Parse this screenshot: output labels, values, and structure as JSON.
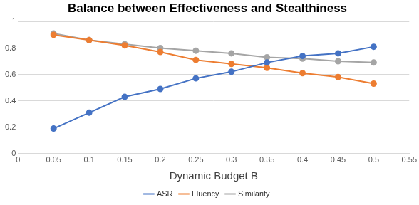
{
  "chart_data": {
    "type": "line",
    "title": "Balance between Effectiveness and Stealthiness",
    "x_label": "Dynamic Budget B",
    "x": [
      0.05,
      0.1,
      0.15,
      0.2,
      0.25,
      0.3,
      0.35,
      0.4,
      0.45,
      0.5
    ],
    "series": [
      {
        "name": "ASR",
        "color": "#4472c4",
        "values": [
          0.19,
          0.31,
          0.43,
          0.49,
          0.57,
          0.62,
          0.69,
          0.74,
          0.76,
          0.81
        ]
      },
      {
        "name": "Fluency",
        "color": "#ed7d31",
        "values": [
          0.9,
          0.86,
          0.82,
          0.77,
          0.71,
          0.68,
          0.65,
          0.61,
          0.58,
          0.53
        ]
      },
      {
        "name": "Similarity",
        "color": "#a5a5a5",
        "values": [
          0.91,
          0.86,
          0.83,
          0.8,
          0.78,
          0.76,
          0.73,
          0.72,
          0.7,
          0.69
        ]
      }
    ],
    "xlim": [
      0,
      0.55
    ],
    "xticks": [
      0,
      0.05,
      0.1,
      0.15,
      0.2,
      0.25,
      0.3,
      0.35,
      0.4,
      0.45,
      0.5,
      0.55
    ],
    "ylim": [
      0,
      1
    ],
    "yticks": [
      0,
      0.2,
      0.4,
      0.6,
      0.8,
      1
    ],
    "grid": true,
    "legend": "bottom",
    "marker": "circle"
  }
}
